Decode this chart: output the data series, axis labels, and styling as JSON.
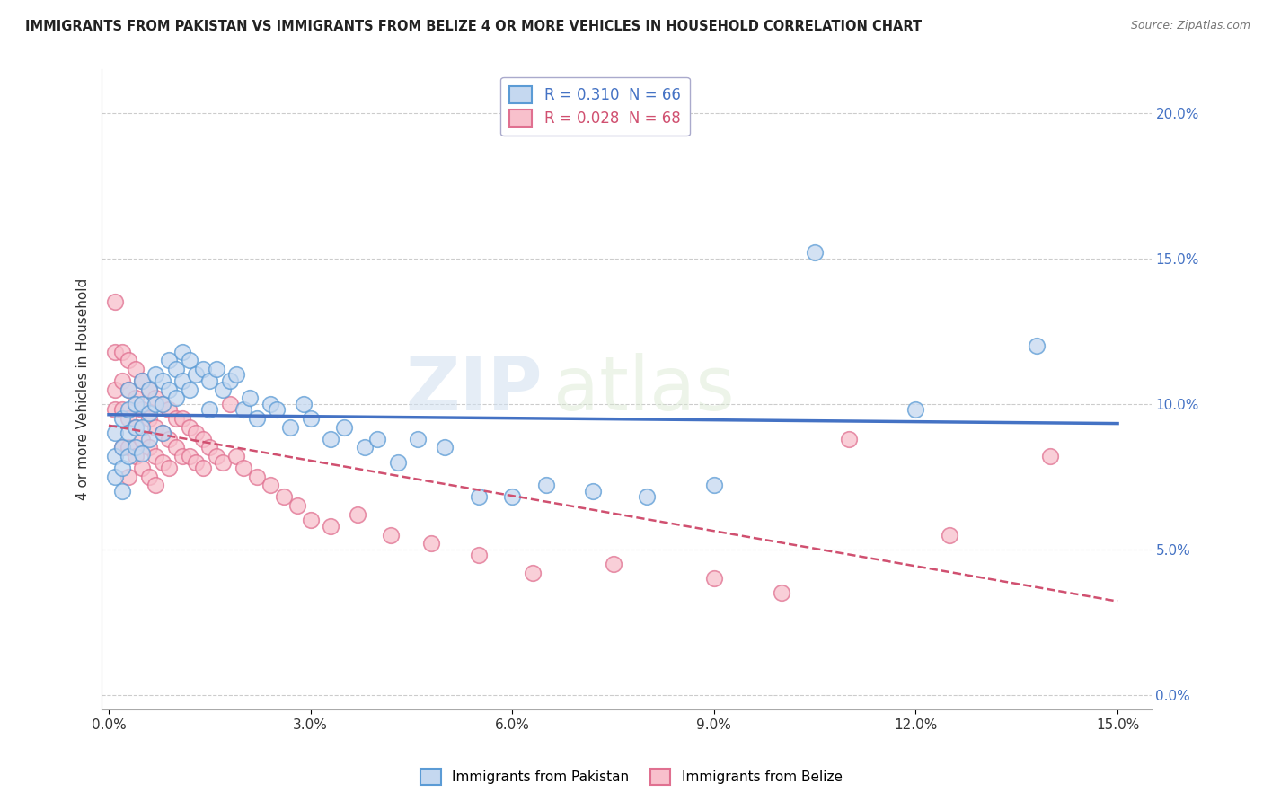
{
  "title": "IMMIGRANTS FROM PAKISTAN VS IMMIGRANTS FROM BELIZE 4 OR MORE VEHICLES IN HOUSEHOLD CORRELATION CHART",
  "source": "Source: ZipAtlas.com",
  "ylabel": "4 or more Vehicles in Household",
  "xlim": [
    -0.001,
    0.155
  ],
  "ylim": [
    -0.005,
    0.215
  ],
  "yticks": [
    0.0,
    0.05,
    0.1,
    0.15,
    0.2
  ],
  "ytick_labels": [
    "0.0%",
    "5.0%",
    "10.0%",
    "15.0%",
    "20.0%"
  ],
  "xticks": [
    0.0,
    0.03,
    0.06,
    0.09,
    0.12,
    0.15
  ],
  "xtick_labels": [
    "0.0%",
    "3.0%",
    "6.0%",
    "9.0%",
    "12.0%",
    "15.0%"
  ],
  "pakistan_R": 0.31,
  "pakistan_N": 66,
  "belize_R": 0.028,
  "belize_N": 68,
  "pakistan_color": "#c5d8f0",
  "pakistan_edge_color": "#5b9bd5",
  "pakistan_line_color": "#4472c4",
  "belize_color": "#f8c0cc",
  "belize_edge_color": "#e07090",
  "belize_line_color": "#d05070",
  "watermark": "ZIPatlas",
  "legend_label_pakistan": "Immigrants from Pakistan",
  "legend_label_belize": "Immigrants from Belize",
  "pakistan_x": [
    0.001,
    0.001,
    0.001,
    0.002,
    0.002,
    0.002,
    0.002,
    0.003,
    0.003,
    0.003,
    0.003,
    0.004,
    0.004,
    0.004,
    0.005,
    0.005,
    0.005,
    0.005,
    0.006,
    0.006,
    0.006,
    0.007,
    0.007,
    0.008,
    0.008,
    0.008,
    0.009,
    0.009,
    0.01,
    0.01,
    0.011,
    0.011,
    0.012,
    0.012,
    0.013,
    0.014,
    0.015,
    0.015,
    0.016,
    0.017,
    0.018,
    0.019,
    0.02,
    0.021,
    0.022,
    0.024,
    0.025,
    0.027,
    0.029,
    0.03,
    0.033,
    0.035,
    0.038,
    0.04,
    0.043,
    0.046,
    0.05,
    0.055,
    0.06,
    0.065,
    0.072,
    0.08,
    0.09,
    0.105,
    0.12,
    0.138
  ],
  "pakistan_y": [
    0.09,
    0.082,
    0.075,
    0.095,
    0.085,
    0.078,
    0.07,
    0.105,
    0.098,
    0.09,
    0.082,
    0.1,
    0.092,
    0.085,
    0.108,
    0.1,
    0.092,
    0.083,
    0.105,
    0.097,
    0.088,
    0.11,
    0.1,
    0.108,
    0.1,
    0.09,
    0.115,
    0.105,
    0.112,
    0.102,
    0.118,
    0.108,
    0.115,
    0.105,
    0.11,
    0.112,
    0.108,
    0.098,
    0.112,
    0.105,
    0.108,
    0.11,
    0.098,
    0.102,
    0.095,
    0.1,
    0.098,
    0.092,
    0.1,
    0.095,
    0.088,
    0.092,
    0.085,
    0.088,
    0.08,
    0.088,
    0.085,
    0.068,
    0.068,
    0.072,
    0.07,
    0.068,
    0.072,
    0.152,
    0.098,
    0.12
  ],
  "belize_x": [
    0.001,
    0.001,
    0.001,
    0.001,
    0.002,
    0.002,
    0.002,
    0.002,
    0.003,
    0.003,
    0.003,
    0.003,
    0.003,
    0.004,
    0.004,
    0.004,
    0.004,
    0.005,
    0.005,
    0.005,
    0.005,
    0.006,
    0.006,
    0.006,
    0.006,
    0.007,
    0.007,
    0.007,
    0.007,
    0.008,
    0.008,
    0.008,
    0.009,
    0.009,
    0.009,
    0.01,
    0.01,
    0.011,
    0.011,
    0.012,
    0.012,
    0.013,
    0.013,
    0.014,
    0.014,
    0.015,
    0.016,
    0.017,
    0.018,
    0.019,
    0.02,
    0.022,
    0.024,
    0.026,
    0.028,
    0.03,
    0.033,
    0.037,
    0.042,
    0.048,
    0.055,
    0.063,
    0.075,
    0.09,
    0.1,
    0.11,
    0.125,
    0.14
  ],
  "belize_y": [
    0.135,
    0.118,
    0.105,
    0.098,
    0.118,
    0.108,
    0.098,
    0.085,
    0.115,
    0.105,
    0.095,
    0.085,
    0.075,
    0.112,
    0.102,
    0.092,
    0.082,
    0.108,
    0.098,
    0.088,
    0.078,
    0.105,
    0.095,
    0.085,
    0.075,
    0.102,
    0.092,
    0.082,
    0.072,
    0.1,
    0.09,
    0.08,
    0.098,
    0.088,
    0.078,
    0.095,
    0.085,
    0.095,
    0.082,
    0.092,
    0.082,
    0.09,
    0.08,
    0.088,
    0.078,
    0.085,
    0.082,
    0.08,
    0.1,
    0.082,
    0.078,
    0.075,
    0.072,
    0.068,
    0.065,
    0.06,
    0.058,
    0.062,
    0.055,
    0.052,
    0.048,
    0.042,
    0.045,
    0.04,
    0.035,
    0.088,
    0.055,
    0.082
  ]
}
